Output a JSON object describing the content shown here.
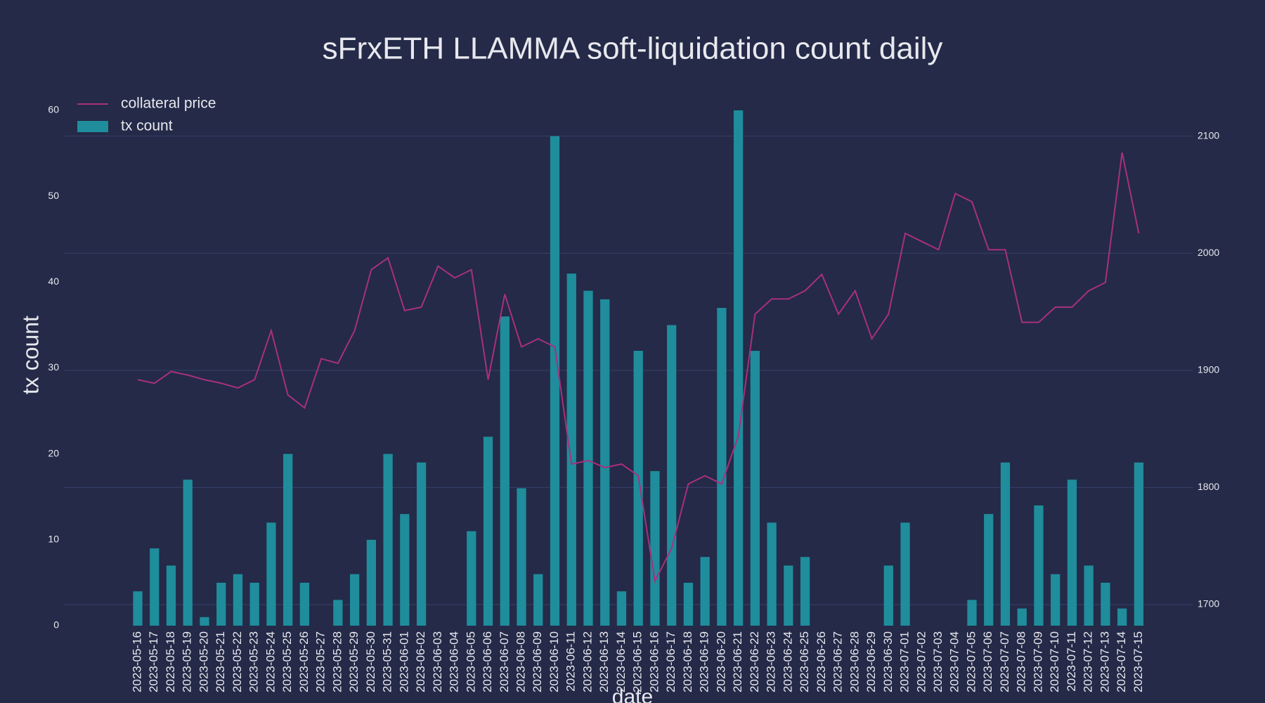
{
  "chart_data": {
    "type": "bar-line",
    "title": "sFrxETH LLAMMA soft-liquidation count daily",
    "x_label": "date",
    "y_label": "tx count",
    "categories": [
      "2023-05-16",
      "2023-05-17",
      "2023-05-18",
      "2023-05-19",
      "2023-05-20",
      "2023-05-21",
      "2023-05-22",
      "2023-05-23",
      "2023-05-24",
      "2023-05-25",
      "2023-05-26",
      "2023-05-27",
      "2023-05-28",
      "2023-05-29",
      "2023-05-30",
      "2023-05-31",
      "2023-06-01",
      "2023-06-02",
      "2023-06-03",
      "2023-06-04",
      "2023-06-05",
      "2023-06-06",
      "2023-06-07",
      "2023-06-08",
      "2023-06-09",
      "2023-06-10",
      "2023-06-11",
      "2023-06-12",
      "2023-06-13",
      "2023-06-14",
      "2023-06-15",
      "2023-06-16",
      "2023-06-17",
      "2023-06-18",
      "2023-06-19",
      "2023-06-20",
      "2023-06-21",
      "2023-06-22",
      "2023-06-23",
      "2023-06-24",
      "2023-06-25",
      "2023-06-26",
      "2023-06-27",
      "2023-06-28",
      "2023-06-29",
      "2023-06-30",
      "2023-07-01",
      "2023-07-02",
      "2023-07-03",
      "2023-07-04",
      "2023-07-05",
      "2023-07-06",
      "2023-07-07",
      "2023-07-08",
      "2023-07-09",
      "2023-07-10",
      "2023-07-11",
      "2023-07-12",
      "2023-07-13",
      "2023-07-14",
      "2023-07-15"
    ],
    "series": [
      {
        "name": "collateral price",
        "type": "line",
        "axis": "y2",
        "color": "#a8307c",
        "values": [
          1892,
          1889,
          1899,
          1896,
          1892,
          1889,
          1885,
          1892,
          1934,
          1879,
          1868,
          1910,
          1906,
          1934,
          1986,
          1996,
          1951,
          1954,
          1989,
          1979,
          1986,
          1892,
          1965,
          1920,
          1927,
          1920,
          1820,
          1823,
          1817,
          1820,
          1810,
          1720,
          1748,
          1803,
          1810,
          1803,
          1844,
          1948,
          1961,
          1961,
          1968,
          1982,
          1948,
          1968,
          1927,
          1948,
          2017,
          2010,
          2003,
          2051,
          2044,
          2003,
          2003,
          1941,
          1941,
          1954,
          1954,
          1968,
          1975,
          2086,
          2017
        ]
      },
      {
        "name": "tx count",
        "type": "bar",
        "color": "#1f8d9b",
        "values": [
          4,
          9,
          7,
          17,
          1,
          5,
          6,
          5,
          12,
          20,
          5,
          0,
          3,
          6,
          10,
          20,
          13,
          19,
          0,
          0,
          11,
          22,
          36,
          16,
          6,
          57,
          41,
          39,
          38,
          4,
          32,
          18,
          35,
          5,
          8,
          37,
          60,
          32,
          12,
          7,
          8,
          0,
          0,
          0,
          0,
          7,
          12,
          0,
          0,
          0,
          3,
          13,
          19,
          2,
          14,
          6,
          17,
          7,
          5,
          2,
          19
        ]
      }
    ],
    "ylim": [
      0,
      60
    ],
    "yticks": [
      0,
      10,
      20,
      30,
      40,
      50,
      60
    ],
    "y2lim": [
      1682,
      2122
    ],
    "y2ticks": [
      1700,
      1800,
      1900,
      2000,
      2100
    ],
    "grid": true,
    "legend": "upper left"
  }
}
